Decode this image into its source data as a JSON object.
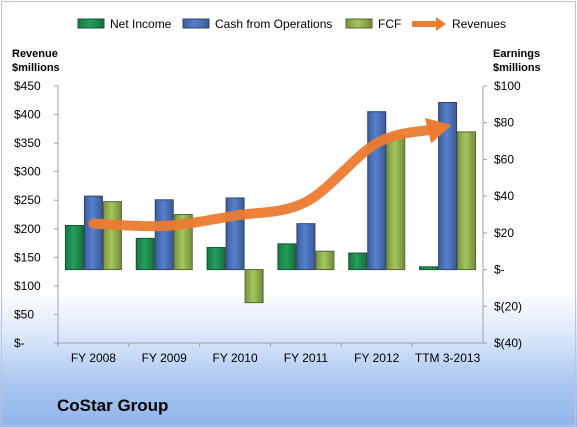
{
  "chart_data": {
    "type": "bar",
    "categories": [
      "FY 2008",
      "FY 2009",
      "FY 2010",
      "FY 2011",
      "FY 2012",
      "TTM 3-2013"
    ],
    "series": [
      {
        "name": "Net Income",
        "axis": "right",
        "color": "#1e8a50",
        "values": [
          24,
          17,
          12,
          14,
          9,
          1.5
        ]
      },
      {
        "name": "Cash from Operations",
        "axis": "right",
        "color": "#4a6fb5",
        "values": [
          40,
          38,
          39,
          25,
          86,
          91
        ]
      },
      {
        "name": "FCF",
        "axis": "right",
        "color": "#8fad4f",
        "values": [
          37,
          30,
          -18,
          10,
          73,
          75
        ]
      },
      {
        "name": "Revenues",
        "axis": "left",
        "type": "line",
        "color": "#ec7c30",
        "values": [
          209,
          205,
          223,
          247,
          350,
          380
        ]
      }
    ],
    "left_axis": {
      "label_line1": "Revenue",
      "label_line2": "$millions",
      "range": [
        0,
        450
      ],
      "ticks": [
        "$450",
        "$400",
        "$350",
        "$300",
        "$250",
        "$200",
        "$150",
        "$100",
        "$50",
        "$-"
      ]
    },
    "right_axis": {
      "label_line1": "Earnings",
      "label_line2": "$millions",
      "range": [
        -40,
        100
      ],
      "ticks": [
        "$100",
        "$80",
        "$60",
        "$40",
        "$20",
        "$-",
        "$(20)",
        "$(40)"
      ]
    },
    "legend": {
      "placement": "top"
    },
    "company": "CoStar Group"
  }
}
